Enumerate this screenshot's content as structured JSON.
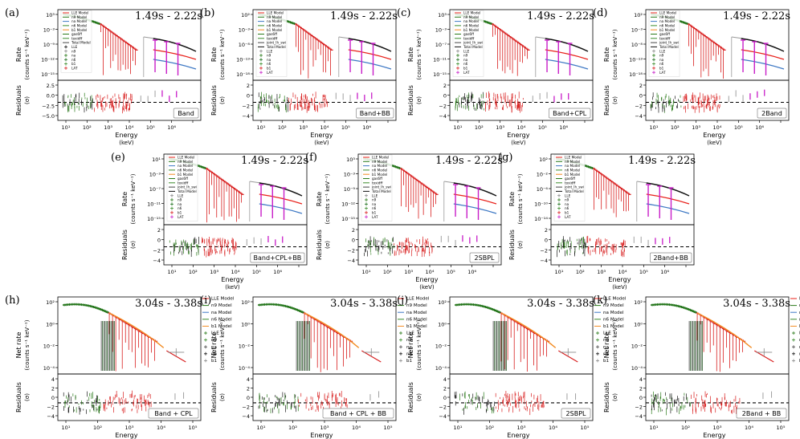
{
  "figure": {
    "description_free": true
  },
  "legend_sets": {
    "gbm_full": [
      "LLE Model",
      "n9 Model",
      "na Model",
      "n6 Model",
      "b1 Model",
      "gas6ff",
      "toxidff",
      "Total Model",
      "LLE",
      "n9",
      "na",
      "n6",
      "b1",
      "LAT"
    ],
    "gbm_ext": [
      "LLE Model",
      "n9 Model",
      "na Model",
      "n6 Model",
      "b1 Model",
      "gas6ff",
      "toxidff",
      "joint_lh_swi",
      "Total Model",
      "LLE",
      "n9",
      "na",
      "n6",
      "b1",
      "LAT"
    ],
    "gbm_short": [
      "LLE Model",
      "n9 Model",
      "na Model",
      "n6 Model",
      "b1 Model",
      "LLE",
      "n9",
      "na",
      "n6",
      "b1"
    ]
  },
  "colors": {
    "lle": "#e8201a",
    "n9": "#2a7a1a",
    "na": "#1a6e1a",
    "n6": "#3a8c2a",
    "b1": "#d81e1e",
    "lat": "#c81ec8",
    "total": "#111111",
    "blue": "#3d78c4",
    "orange": "#f28a20",
    "grey": "#888888"
  },
  "chart_data": [
    {
      "id": "a",
      "label": "(a)",
      "time": "1.49s - 2.22s",
      "model": "Band",
      "type": "line",
      "ylabel": "Rate",
      "yunit": "(counts s⁻¹ keV⁻¹)",
      "rlabel": "Residuals",
      "runit": "(σ)",
      "xlabel": "Energy",
      "xunit": "(keV)",
      "legend": "gbm_full",
      "xticks": [
        "10¹",
        "10³",
        "10⁵",
        "10⁷"
      ],
      "xminor": [
        "10²",
        "10⁴",
        "10⁶"
      ],
      "yticks": [
        "10³",
        "10⁻³",
        "10⁻⁹",
        "10⁻¹²",
        "10⁻¹⁵"
      ],
      "rticks": [
        "2.5",
        "0.0",
        "−2.5",
        "−5.0"
      ],
      "variant": "lat"
    },
    {
      "id": "b",
      "label": "(b)",
      "time": "1.49s - 2.22s",
      "model": "Band+BB",
      "type": "line",
      "ylabel": "Rate",
      "yunit": "(counts s⁻¹ keV⁻¹)",
      "rlabel": "Residuals",
      "runit": "(σ)",
      "xlabel": "Energy",
      "xunit": "(keV)",
      "legend": "gbm_ext",
      "xticks": [
        "10¹",
        "10³",
        "10⁵",
        "10⁷"
      ],
      "xminor": [
        "10²",
        "10⁴",
        "10⁶"
      ],
      "yticks": [
        "10²",
        "10⁻³",
        "10⁻⁸",
        "10⁻¹³",
        "10⁻¹⁸"
      ],
      "rticks": [
        "2",
        "0",
        "−2",
        "−4"
      ],
      "variant": "lat"
    },
    {
      "id": "c",
      "label": "(c)",
      "time": "1.49s - 2.22s",
      "model": "Band+CPL",
      "type": "line",
      "ylabel": "Rate",
      "yunit": "(counts s⁻¹ keV⁻¹)",
      "rlabel": "Residuals",
      "runit": "(σ)",
      "xlabel": "Energy",
      "xunit": "(keV)",
      "legend": "gbm_ext",
      "xticks": [
        "10¹",
        "10³",
        "10⁵",
        "10⁷"
      ],
      "xminor": [
        "10²",
        "10⁴",
        "10⁶"
      ],
      "yticks": [
        "10³",
        "10⁻³",
        "10⁻⁷",
        "10⁻¹¹",
        "10⁻¹⁵"
      ],
      "rticks": [
        "2",
        "0",
        "−2",
        "−4"
      ],
      "variant": "lat"
    },
    {
      "id": "d",
      "label": "(d)",
      "time": "1.49s - 2.22s",
      "model": "2Band",
      "type": "line",
      "ylabel": "Rate",
      "yunit": "(counts s⁻¹ keV⁻¹)",
      "rlabel": "Residuals",
      "runit": "(σ)",
      "xlabel": "Energy",
      "xunit": "(keV)",
      "legend": "gbm_ext",
      "xticks": [
        "10¹",
        "10³",
        "10⁵",
        "10⁷"
      ],
      "xminor": [
        "10²",
        "10⁴",
        "10⁶"
      ],
      "yticks": [
        "10²",
        "10⁻³",
        "10⁻⁸",
        "10⁻¹³",
        "10⁻¹⁸"
      ],
      "rticks": [
        "2",
        "0",
        "−2",
        "−4"
      ],
      "variant": "lat"
    },
    {
      "id": "e",
      "label": "(e)",
      "time": "1.49s - 2.22s",
      "model": "Band+CPL+BB",
      "type": "line",
      "ylabel": "Rate",
      "yunit": "(counts s⁻¹ keV⁻¹)",
      "rlabel": "Residuals",
      "runit": "(σ)",
      "xlabel": "Energy",
      "xunit": "(keV)",
      "legend": "gbm_ext",
      "xticks": [
        "10¹",
        "10³",
        "10⁵",
        "10⁷"
      ],
      "xminor": [
        "10²",
        "10⁴",
        "10⁶"
      ],
      "yticks": [
        "10¹",
        "10⁻³",
        "10⁻⁷",
        "10⁻¹¹",
        "10⁻¹⁵"
      ],
      "rticks": [
        "2",
        "0",
        "−2",
        "−4"
      ],
      "variant": "lat"
    },
    {
      "id": "f",
      "label": "(f)",
      "time": "1.49s - 2.22s",
      "model": "2SBPL",
      "type": "line",
      "ylabel": "Rate",
      "yunit": "(counts s⁻¹ keV⁻¹)",
      "rlabel": "Residuals",
      "runit": "(σ)",
      "xlabel": "Energy",
      "xunit": "(keV)",
      "legend": "gbm_ext",
      "xticks": [
        "10¹",
        "10³",
        "10⁵",
        "10⁷"
      ],
      "xminor": [
        "10²",
        "10⁴",
        "10⁶"
      ],
      "yticks": [
        "10³",
        "10⁻³",
        "10⁻⁹",
        "10⁻¹²",
        "10⁻¹⁵"
      ],
      "rticks": [
        "2",
        "0",
        "−2",
        "−4"
      ],
      "variant": "lat"
    },
    {
      "id": "g",
      "label": "(g)",
      "time": "1.49s - 2.22s",
      "model": "2Band+BB",
      "type": "line",
      "ylabel": "Rate",
      "yunit": "(counts s⁻¹ keV⁻¹)",
      "rlabel": "Residuals",
      "runit": "(σ)",
      "xlabel": "Energy",
      "xunit": "(keV)",
      "legend": "gbm_ext",
      "xticks": [
        "10¹",
        "10³",
        "10⁵",
        "10⁷"
      ],
      "xminor": [
        "10²",
        "10⁴",
        "10⁶"
      ],
      "yticks": [
        "10²",
        "10⁻²",
        "10⁻⁶",
        "10⁻¹⁰",
        "10⁻¹⁴"
      ],
      "rticks": [
        "2",
        "0",
        "−2",
        "−4"
      ],
      "variant": "lat"
    },
    {
      "id": "h",
      "label": "(h)",
      "time": "3.04s - 3.38s",
      "model": "Band + CPL",
      "type": "line",
      "ylabel": "Net rate",
      "yunit": "(counts s⁻¹ keV⁻¹)",
      "rlabel": "Residuals",
      "runit": "(σ)",
      "xlabel": "Energy",
      "xunit": "(keV)",
      "legend": "gbm_short",
      "xticks": [
        "10¹",
        "10²",
        "10³",
        "10⁴",
        "10⁵"
      ],
      "xminor": [],
      "yticks": [
        "10²",
        "10⁰",
        "10⁻²",
        "10⁻⁴"
      ],
      "rticks": [
        "4",
        "2",
        "0",
        "−2",
        "−4"
      ],
      "variant": "net"
    },
    {
      "id": "i",
      "label": "(i)",
      "time": "3.04s - 3.38s",
      "model": "Band + CPL + BB",
      "type": "line",
      "ylabel": "Net rate",
      "yunit": "(counts s⁻¹ keV⁻¹)",
      "rlabel": "Residuals",
      "runit": "(σ)",
      "xlabel": "Energy",
      "xunit": "(keV)",
      "legend": "gbm_short",
      "xticks": [
        "10¹",
        "10²",
        "10³",
        "10⁴",
        "10⁵"
      ],
      "xminor": [],
      "yticks": [
        "10²",
        "10⁰",
        "10⁻²",
        "10⁻⁴"
      ],
      "rticks": [
        "4",
        "2",
        "0",
        "−2",
        "−4"
      ],
      "variant": "net"
    },
    {
      "id": "j",
      "label": "(j)",
      "time": "3.04s - 3.38s",
      "model": "2SBPL",
      "type": "line",
      "ylabel": "Net rate",
      "yunit": "(counts s⁻¹ keV⁻¹)",
      "rlabel": "Residuals",
      "runit": "(σ)",
      "xlabel": "Energy",
      "xunit": "(keV)",
      "legend": "gbm_short",
      "xticks": [
        "10¹",
        "10²",
        "10³",
        "10⁴",
        "10⁵"
      ],
      "xminor": [],
      "yticks": [
        "10²",
        "10⁰",
        "10⁻²",
        "10⁻⁴"
      ],
      "rticks": [
        "4",
        "2",
        "0",
        "−2",
        "−4"
      ],
      "variant": "net"
    },
    {
      "id": "k",
      "label": "(k)",
      "time": "3.04s - 3.38s",
      "model": "2Band + BB",
      "type": "line",
      "ylabel": "Net rate",
      "yunit": "(counts s⁻¹ keV⁻¹)",
      "rlabel": "Residuals",
      "runit": "(σ)",
      "xlabel": "Energy",
      "xunit": "(keV)",
      "legend": "gbm_short",
      "xticks": [
        "10¹",
        "10²",
        "10³",
        "10⁴",
        "10⁵"
      ],
      "xminor": [],
      "yticks": [
        "10²",
        "10⁰",
        "10⁻²",
        "10⁻⁴"
      ],
      "rticks": [
        "4",
        "2",
        "0",
        "−2",
        "−4"
      ],
      "variant": "net"
    }
  ]
}
